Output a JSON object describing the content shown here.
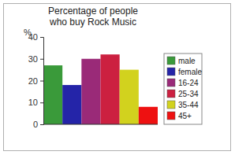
{
  "chart_data": {
    "type": "bar",
    "title": "Percentage of people\nwho buy Rock Music",
    "y_label": "%",
    "categories": [
      "male",
      "female",
      "16-24",
      "25-34",
      "35-44",
      "45+"
    ],
    "values": [
      27,
      18,
      30,
      32,
      25,
      8
    ],
    "colors": [
      "#3a9a3a",
      "#2424a8",
      "#9a2a78",
      "#cc2040",
      "#d2d21e",
      "#ee1111"
    ],
    "ylim": [
      0,
      40
    ],
    "yticks": [
      0,
      10,
      20,
      30,
      40
    ],
    "grid": false,
    "legend": "right",
    "tick_labels": "y"
  }
}
